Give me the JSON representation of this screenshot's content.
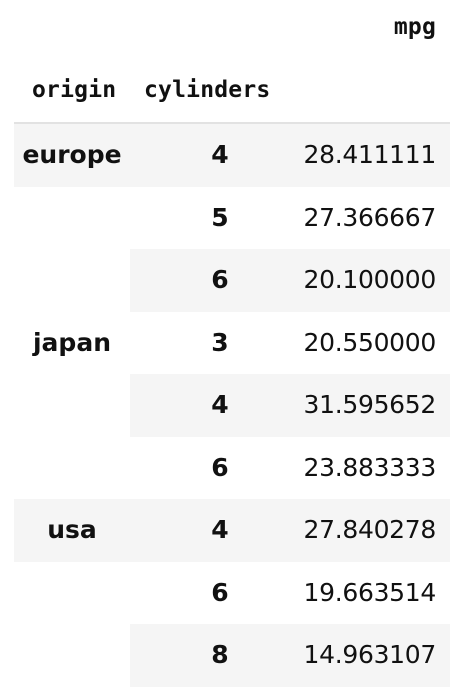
{
  "table": {
    "header_value_col": "mpg",
    "header_index": [
      "origin",
      "cylinders"
    ],
    "stripe_color": "#f5f5f5",
    "groups": [
      {
        "origin": "europe",
        "rows": [
          {
            "cylinders": "4",
            "mpg": "28.411111"
          },
          {
            "cylinders": "5",
            "mpg": "27.366667"
          },
          {
            "cylinders": "6",
            "mpg": "20.100000"
          }
        ]
      },
      {
        "origin": "japan",
        "rows": [
          {
            "cylinders": "3",
            "mpg": "20.550000"
          },
          {
            "cylinders": "4",
            "mpg": "31.595652"
          },
          {
            "cylinders": "6",
            "mpg": "23.883333"
          }
        ]
      },
      {
        "origin": "usa",
        "rows": [
          {
            "cylinders": "4",
            "mpg": "27.840278"
          },
          {
            "cylinders": "6",
            "mpg": "19.663514"
          },
          {
            "cylinders": "8",
            "mpg": "14.963107"
          }
        ]
      }
    ]
  }
}
